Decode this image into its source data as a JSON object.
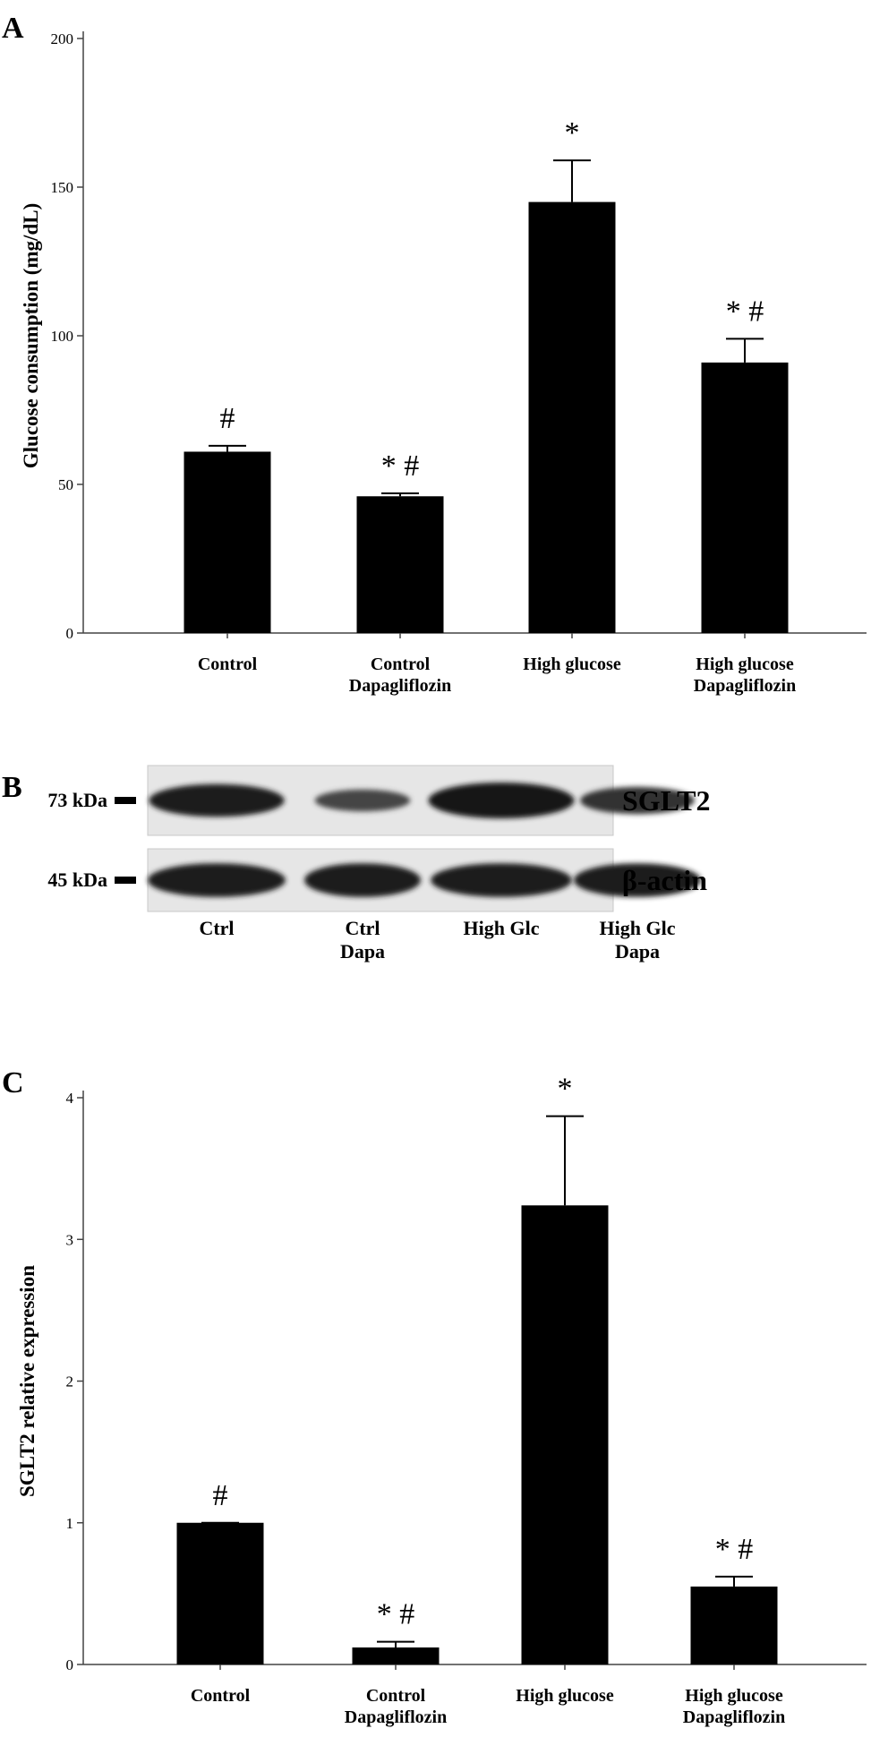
{
  "panels": {
    "a_letter": "A",
    "b_letter": "B",
    "c_letter": "C"
  },
  "chart_data": [
    {
      "type": "bar",
      "panel": "A",
      "ylabel": "Glucose consumption (mg/dL)",
      "xlabel": "",
      "ylim": [
        0,
        200
      ],
      "yticks": [
        0,
        50,
        100,
        150,
        200
      ],
      "categories": [
        [
          "Control"
        ],
        [
          "Control",
          "Dapagliflozin"
        ],
        [
          "High glucose"
        ],
        [
          "High glucose",
          "Dapagliflozin"
        ]
      ],
      "values": [
        61,
        46,
        145,
        91
      ],
      "errors": [
        2,
        1,
        14,
        8
      ],
      "annotations": [
        "#",
        "* #",
        "*",
        "* #"
      ],
      "bar_color": "#000000"
    },
    {
      "type": "bar",
      "panel": "C",
      "ylabel": "SGLT2 relative expression",
      "xlabel": "",
      "ylim": [
        0,
        4
      ],
      "yticks": [
        0,
        1,
        2,
        3,
        4
      ],
      "categories": [
        [
          "Control"
        ],
        [
          "Control",
          "Dapagliflozin"
        ],
        [
          "High glucose"
        ],
        [
          "High glucose",
          "Dapagliflozin"
        ]
      ],
      "values": [
        1.0,
        0.12,
        3.24,
        0.55
      ],
      "errors": [
        0.0,
        0.04,
        0.63,
        0.07
      ],
      "annotations": [
        "#",
        "* #",
        "*",
        "* #"
      ],
      "bar_color": "#000000"
    }
  ],
  "blot": {
    "rows": [
      {
        "marker": "73 kDa",
        "protein": "SGLT2",
        "intensities": [
          0.85,
          0.35,
          1.0,
          0.6
        ]
      },
      {
        "marker": "45 kDa",
        "protein": "β-actin",
        "intensities": [
          0.9,
          0.9,
          0.9,
          0.9
        ]
      }
    ],
    "lanes": [
      [
        "Ctrl"
      ],
      [
        "Ctrl",
        "Dapa"
      ],
      [
        "High Glc"
      ],
      [
        "High Glc",
        "Dapa"
      ]
    ]
  }
}
